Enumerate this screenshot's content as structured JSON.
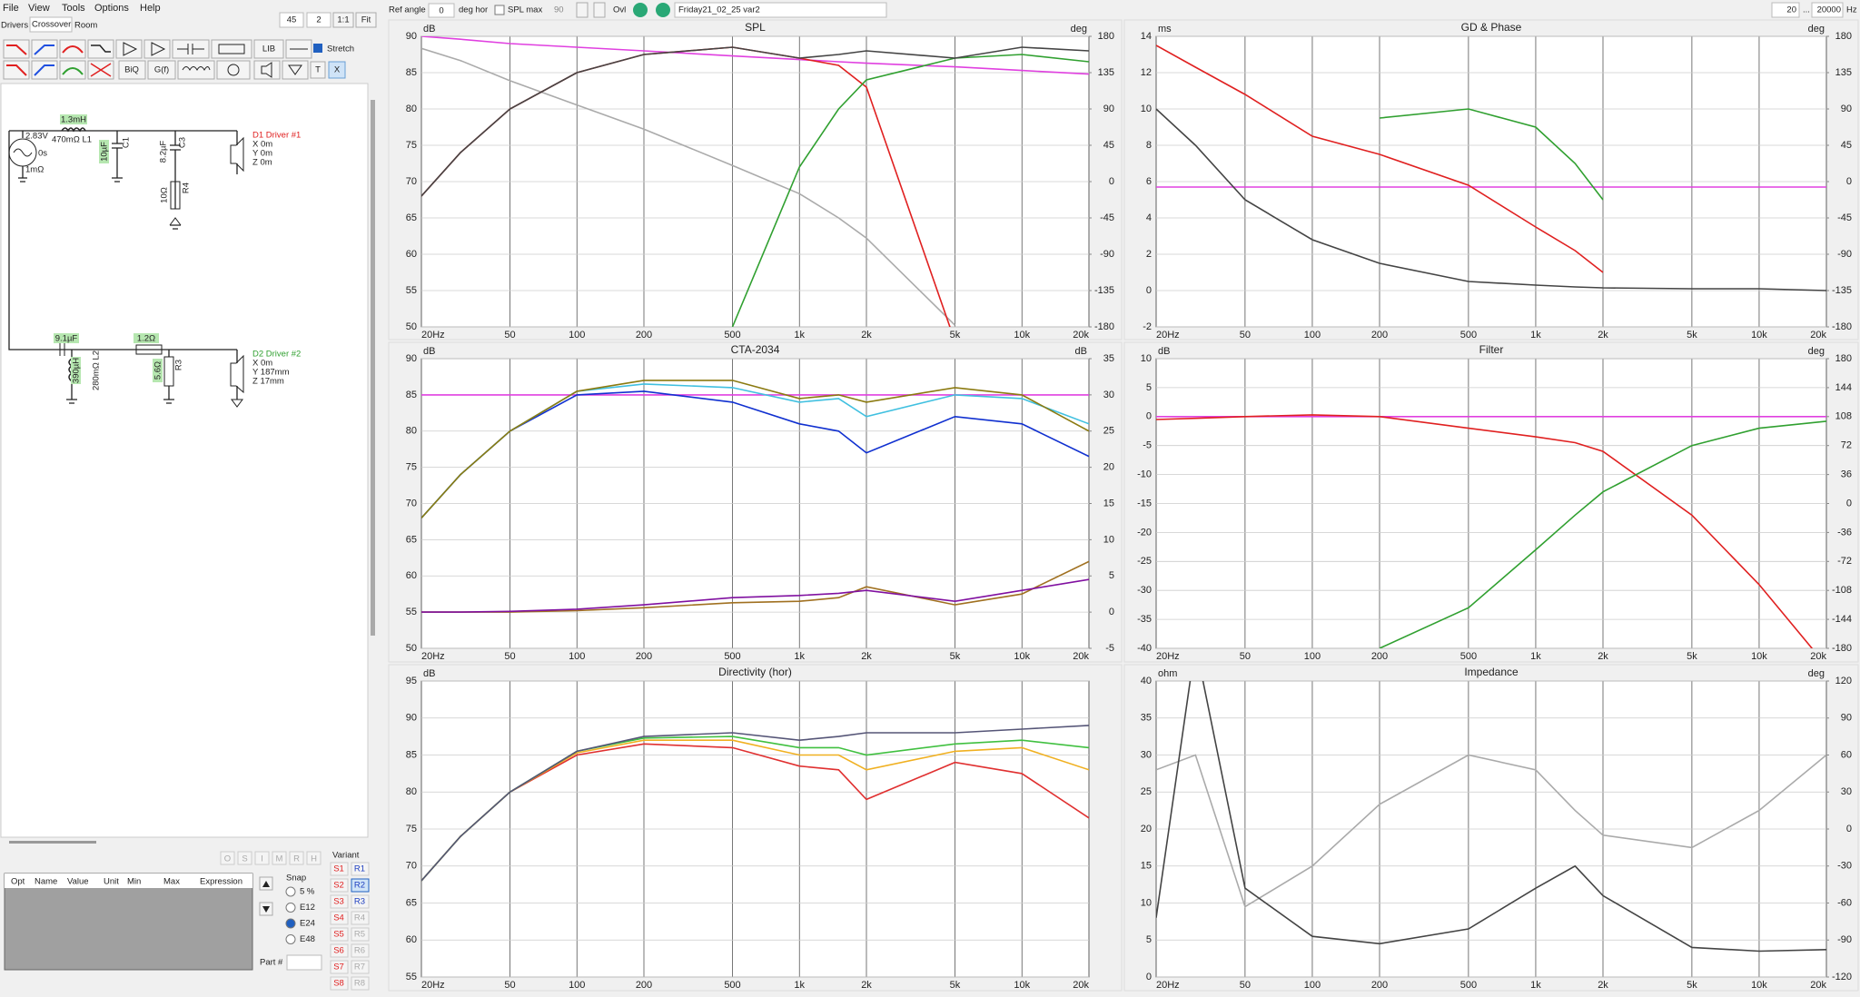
{
  "menu": [
    "File",
    "View",
    "Tools",
    "Options",
    "Help"
  ],
  "tabs": [
    "Drivers",
    "Crossover",
    "Room"
  ],
  "toolbar": {
    "zoom": "45",
    "step": "2",
    "one_to_one": "1:1",
    "fit": "Fit",
    "lib": "LIB",
    "stretch": "Stretch",
    "biq": "BiQ",
    "gf": "G(f)",
    "t": "T",
    "x": "X"
  },
  "topbar": {
    "ref_angle": "Ref angle",
    "ref_value": "0",
    "deg_hor": "deg hor",
    "spl_max": "SPL max",
    "spl_max_value": "90",
    "ovl": "Ovl",
    "project": "Friday21_02_25 var2",
    "f_min": "20",
    "range_sep": "...",
    "f_max": "20000",
    "hz": "Hz"
  },
  "schematic": {
    "l1": "1.3mH",
    "l1_info": "470mΩ L1",
    "source_v": "2.83V",
    "source_t": "0s",
    "source_r": "1mΩ",
    "c1": "10µF",
    "c1_name": "C1",
    "c3": "8.2µF",
    "c3_name": "C3",
    "r4": "10Ω",
    "r4_name": "R4",
    "d1": "D1 Driver #1",
    "d1_x": "X 0m",
    "d1_y": "Y 0m",
    "d1_z": "Z 0m",
    "c2": "9.1µF",
    "l2": "390µH",
    "l2_info": "280mΩ L2",
    "r2": "1.2Ω",
    "r3": "5.6Ω",
    "r3_name": "R3",
    "d2": "D2 Driver #2",
    "d2_x": "X 0m",
    "d2_y": "Y 187mm",
    "d2_z": "Z 17mm"
  },
  "params": {
    "buttons": [
      "O",
      "S",
      "I",
      "M",
      "R",
      "H"
    ],
    "headers": [
      "Opt",
      "Name",
      "Value",
      "Unit",
      "Min",
      "Max",
      "Expression"
    ],
    "snap": "Snap",
    "snap_options": [
      "5 %",
      "E12",
      "E24",
      "E48"
    ],
    "part": "Part #",
    "variant": "Variant",
    "s": [
      "S1",
      "S2",
      "S3",
      "S4",
      "S5",
      "S6",
      "S7",
      "S8"
    ],
    "r": [
      "R1",
      "R2",
      "R3",
      "R4",
      "R5",
      "R6",
      "R7",
      "R8"
    ]
  },
  "chart_data": [
    {
      "type": "line",
      "title": "SPL",
      "y_unit": "dB",
      "y2_unit": "deg",
      "x_scale": "log",
      "grid": true,
      "x": [
        20,
        30,
        50,
        100,
        200,
        500,
        1000,
        1500,
        2000,
        5000,
        10000,
        20000
      ],
      "xlim": [
        20,
        20000
      ],
      "xticks": [
        {
          "value": 20,
          "label": "20Hz"
        },
        50,
        100,
        200,
        500,
        {
          "value": 1000,
          "label": "1k"
        },
        {
          "value": 2000,
          "label": "2k"
        },
        {
          "value": 5000,
          "label": "5k"
        },
        {
          "value": 10000,
          "label": "10k"
        },
        {
          "value": 20000,
          "label": "20k"
        }
      ],
      "ylim": [
        50,
        90
      ],
      "yticks": [
        50,
        55,
        60,
        65,
        70,
        75,
        80,
        85,
        90
      ],
      "y2lim": [
        -180,
        180
      ],
      "y2ticks": [
        -180,
        -135,
        -90,
        -45,
        0,
        45,
        90,
        135,
        180
      ],
      "series": [
        {
          "color": "#e040e0",
          "values": [
            90,
            89.6,
            89,
            88.5,
            88,
            87.3,
            86.8,
            86.5,
            86.3,
            85.8,
            85.3,
            84.8
          ]
        },
        {
          "color": "#aaaaaa",
          "axis": "y2",
          "values": [
            165,
            150,
            125,
            95,
            65,
            20,
            -15,
            -45,
            -70,
            -178,
            null,
            null
          ]
        },
        {
          "color": "#e02020",
          "values": [
            68,
            74,
            80,
            85,
            87.5,
            88.5,
            87,
            86,
            83,
            48,
            null,
            null
          ]
        },
        {
          "color": "#30a030",
          "values": [
            null,
            null,
            null,
            null,
            null,
            50,
            72,
            80,
            84,
            87,
            87.5,
            86.5
          ]
        },
        {
          "color": "#444444",
          "values": [
            68,
            74,
            80,
            85,
            87.5,
            88.5,
            87,
            87.5,
            88,
            87,
            88.5,
            88
          ]
        }
      ]
    },
    {
      "type": "line",
      "title": "GD & Phase",
      "y_unit": "ms",
      "y2_unit": "deg",
      "x_scale": "log",
      "grid": true,
      "x": [
        20,
        30,
        50,
        100,
        200,
        500,
        1000,
        1500,
        2000,
        5000,
        10000,
        20000
      ],
      "xlim": [
        20,
        20000
      ],
      "xticks": [
        {
          "value": 20,
          "label": "20Hz"
        },
        50,
        100,
        200,
        500,
        {
          "value": 1000,
          "label": "1k"
        },
        {
          "value": 2000,
          "label": "2k"
        },
        {
          "value": 5000,
          "label": "5k"
        },
        {
          "value": 10000,
          "label": "10k"
        },
        {
          "value": 20000,
          "label": "20k"
        }
      ],
      "ylim": [
        -2,
        14
      ],
      "yticks": [
        -2,
        0,
        2,
        4,
        6,
        8,
        10,
        12,
        14
      ],
      "y2lim": [
        -180,
        180
      ],
      "y2ticks": [
        -180,
        -135,
        -90,
        -45,
        0,
        45,
        90,
        135,
        180
      ],
      "series": [
        {
          "color": "#e040e0",
          "values": [
            5.7,
            5.7,
            5.7,
            5.7,
            5.7,
            5.7,
            5.7,
            5.7,
            5.7,
            5.7,
            5.7,
            5.7
          ]
        },
        {
          "color": "#e02020",
          "values": [
            13.5,
            12.3,
            10.8,
            8.5,
            7.5,
            5.8,
            3.5,
            2.2,
            1,
            null,
            null,
            null
          ]
        },
        {
          "color": "#30a030",
          "values": [
            null,
            null,
            null,
            null,
            9.5,
            10,
            9,
            7,
            5,
            null,
            null,
            null
          ]
        },
        {
          "color": "#444444",
          "values": [
            10,
            8,
            5,
            2.8,
            1.5,
            0.5,
            0.3,
            0.2,
            0.15,
            0.1,
            0.1,
            0
          ]
        }
      ]
    },
    {
      "type": "line",
      "title": "CTA-2034",
      "y_unit": "dB",
      "y2_unit": "dB",
      "x_scale": "log",
      "grid": true,
      "x": [
        20,
        30,
        50,
        100,
        200,
        500,
        1000,
        1500,
        2000,
        5000,
        10000,
        20000
      ],
      "xlim": [
        20,
        20000
      ],
      "xticks": [
        {
          "value": 20,
          "label": "20Hz"
        },
        50,
        100,
        200,
        500,
        {
          "value": 1000,
          "label": "1k"
        },
        {
          "value": 2000,
          "label": "2k"
        },
        {
          "value": 5000,
          "label": "5k"
        },
        {
          "value": 10000,
          "label": "10k"
        },
        {
          "value": 20000,
          "label": "20k"
        }
      ],
      "ylim": [
        50,
        90
      ],
      "yticks": [
        50,
        55,
        60,
        65,
        70,
        75,
        80,
        85,
        90
      ],
      "y2lim": [
        -5,
        35
      ],
      "y2ticks": [
        -5,
        0,
        5,
        10,
        15,
        20,
        25,
        30,
        35
      ],
      "series": [
        {
          "color": "#e040e0",
          "values": [
            85,
            85,
            85,
            85,
            85,
            85,
            85,
            85,
            85,
            85,
            85,
            85
          ]
        },
        {
          "color": "#a07020",
          "axis": "y2",
          "values": [
            0,
            0,
            0,
            0.2,
            0.6,
            1.3,
            1.5,
            2,
            3.5,
            1,
            2.5,
            7
          ]
        },
        {
          "color": "#8010a0",
          "axis": "y2",
          "values": [
            0,
            0,
            0.1,
            0.4,
            1,
            2,
            2.3,
            2.6,
            3,
            1.5,
            3,
            4.5
          ]
        },
        {
          "color": "#1030d0",
          "values": [
            68,
            74,
            80,
            85,
            85.5,
            84,
            81,
            80,
            77,
            82,
            81,
            76.5
          ]
        },
        {
          "color": "#40c0e0",
          "values": [
            68,
            74,
            80,
            85.5,
            86.5,
            86,
            84,
            84.5,
            82,
            85,
            84.5,
            81
          ]
        },
        {
          "color": "#8b7a10",
          "values": [
            68,
            74,
            80,
            85.5,
            87,
            87,
            84.5,
            85,
            84,
            86,
            85,
            80
          ]
        }
      ]
    },
    {
      "type": "line",
      "title": "Filter",
      "y_unit": "dB",
      "y2_unit": "deg",
      "x_scale": "log",
      "grid": true,
      "x": [
        20,
        30,
        50,
        100,
        200,
        500,
        1000,
        1500,
        2000,
        5000,
        10000,
        20000
      ],
      "xlim": [
        20,
        20000
      ],
      "xticks": [
        {
          "value": 20,
          "label": "20Hz"
        },
        50,
        100,
        200,
        500,
        {
          "value": 1000,
          "label": "1k"
        },
        {
          "value": 2000,
          "label": "2k"
        },
        {
          "value": 5000,
          "label": "5k"
        },
        {
          "value": 10000,
          "label": "10k"
        },
        {
          "value": 20000,
          "label": "20k"
        }
      ],
      "ylim": [
        -40,
        10
      ],
      "yticks": [
        -40,
        -35,
        -30,
        -25,
        -20,
        -15,
        -10,
        -5,
        0,
        5,
        10
      ],
      "y2lim": [
        -180,
        180
      ],
      "y2ticks": [
        -180,
        -144,
        -108,
        -72,
        -36,
        0,
        36,
        72,
        108,
        144,
        180
      ],
      "series": [
        {
          "color": "#e040e0",
          "values": [
            0,
            0,
            0,
            0,
            0,
            0,
            0,
            0,
            0,
            0,
            0,
            0
          ]
        },
        {
          "color": "#e02020",
          "values": [
            -0.5,
            -0.3,
            0,
            0.3,
            0,
            -2,
            -3.5,
            -4.5,
            -6,
            -17,
            -29,
            -43
          ]
        },
        {
          "color": "#30a030",
          "values": [
            null,
            null,
            null,
            null,
            -40,
            -33,
            -23,
            -17,
            -13,
            -5,
            -2,
            -0.8
          ]
        }
      ]
    },
    {
      "type": "line",
      "title": "Directivity (hor)",
      "y_unit": "dB",
      "x_scale": "log",
      "grid": true,
      "x": [
        20,
        30,
        50,
        100,
        200,
        500,
        1000,
        1500,
        2000,
        5000,
        10000,
        20000
      ],
      "xlim": [
        20,
        20000
      ],
      "xticks": [
        {
          "value": 20,
          "label": "20Hz"
        },
        50,
        100,
        200,
        500,
        {
          "value": 1000,
          "label": "1k"
        },
        {
          "value": 2000,
          "label": "2k"
        },
        {
          "value": 5000,
          "label": "5k"
        },
        {
          "value": 10000,
          "label": "10k"
        },
        {
          "value": 20000,
          "label": "20k"
        }
      ],
      "ylim": [
        55,
        95
      ],
      "yticks": [
        55,
        60,
        65,
        70,
        75,
        80,
        85,
        90,
        95
      ],
      "series": [
        {
          "color": "#e03030",
          "values": [
            68,
            74,
            80,
            85,
            86.5,
            86,
            83.5,
            83,
            79,
            84,
            82.5,
            76.5
          ]
        },
        {
          "color": "#f0b020",
          "values": [
            68,
            74,
            80,
            85.3,
            87,
            87,
            85,
            85,
            83,
            85.5,
            86,
            83
          ]
        },
        {
          "color": "#40c040",
          "values": [
            68,
            74,
            80,
            85.5,
            87.3,
            87.5,
            86,
            86,
            85,
            86.5,
            87,
            86
          ]
        },
        {
          "color": "#555577",
          "values": [
            68,
            74,
            80,
            85.5,
            87.5,
            88,
            87,
            87.5,
            88,
            88,
            88.5,
            89
          ]
        }
      ]
    },
    {
      "type": "line",
      "title": "Impedance",
      "y_unit": "ohm",
      "y2_unit": "deg",
      "x_scale": "log",
      "grid": true,
      "x": [
        20,
        30,
        50,
        100,
        200,
        500,
        1000,
        1500,
        2000,
        5000,
        10000,
        20000
      ],
      "xlim": [
        20,
        20000
      ],
      "xticks": [
        {
          "value": 20,
          "label": "20Hz"
        },
        50,
        100,
        200,
        500,
        {
          "value": 1000,
          "label": "1k"
        },
        {
          "value": 2000,
          "label": "2k"
        },
        {
          "value": 5000,
          "label": "5k"
        },
        {
          "value": 10000,
          "label": "10k"
        },
        {
          "value": 20000,
          "label": "20k"
        }
      ],
      "ylim": [
        0,
        40
      ],
      "yticks": [
        0,
        5,
        10,
        15,
        20,
        25,
        30,
        35,
        40
      ],
      "y2lim": [
        -120,
        120
      ],
      "y2ticks": [
        -120,
        -90,
        -60,
        -30,
        0,
        30,
        60,
        90,
        120
      ],
      "series": [
        {
          "color": "#aaaaaa",
          "axis": "y2",
          "values": [
            48,
            60,
            -63,
            -30,
            20,
            60,
            48,
            15,
            -5,
            -15,
            15,
            60
          ]
        },
        {
          "color": "#444444",
          "values": [
            8,
            45,
            12,
            5.5,
            4.5,
            6.5,
            12,
            15,
            11,
            4,
            3.5,
            3.7
          ]
        }
      ]
    }
  ]
}
